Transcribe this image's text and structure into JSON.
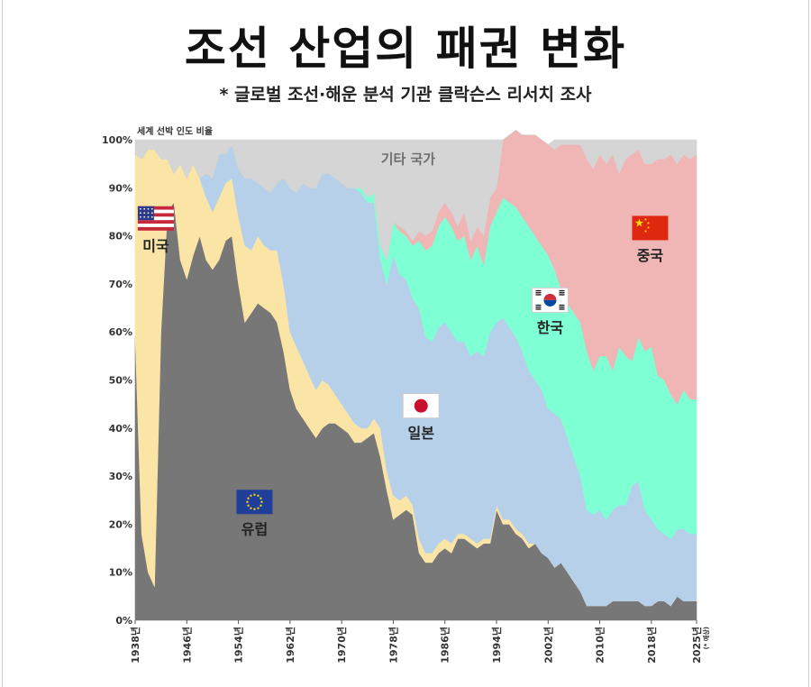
{
  "header": {
    "title": "조선 산업의 패권 변화",
    "subtitle": "* 글로벌 조선·해운 분석 기관 클락슨스 리서치 조사"
  },
  "chart_data": {
    "type": "area",
    "stacked": true,
    "ylabel": "세계 선박 인도 비율",
    "ylim": [
      0,
      100
    ],
    "yticks": [
      "0%",
      "10%",
      "20%",
      "30%",
      "40%",
      "50%",
      "60%",
      "70%",
      "80%",
      "90%",
      "100%"
    ],
    "xlim": [
      1938,
      2025
    ],
    "xticks": [
      {
        "year": 1938,
        "label": "1938년"
      },
      {
        "year": 1946,
        "label": "1946년"
      },
      {
        "year": 1954,
        "label": "1954년"
      },
      {
        "year": 1962,
        "label": "1962년"
      },
      {
        "year": 1970,
        "label": "1970년"
      },
      {
        "year": 1978,
        "label": "1978년"
      },
      {
        "year": 1986,
        "label": "1986년"
      },
      {
        "year": 1994,
        "label": "1994년"
      },
      {
        "year": 2002,
        "label": "2002년"
      },
      {
        "year": 2010,
        "label": "2010년"
      },
      {
        "year": 2018,
        "label": "2018년"
      },
      {
        "year": 2025,
        "label": "2025년",
        "note": "(* 예상)"
      }
    ],
    "x": [
      1938,
      1939,
      1940,
      1941,
      1942,
      1943,
      1944,
      1945,
      1946,
      1947,
      1948,
      1949,
      1950,
      1951,
      1952,
      1953,
      1954,
      1955,
      1956,
      1957,
      1958,
      1959,
      1960,
      1961,
      1962,
      1963,
      1964,
      1965,
      1966,
      1967,
      1968,
      1969,
      1970,
      1971,
      1972,
      1973,
      1974,
      1975,
      1976,
      1977,
      1978,
      1979,
      1980,
      1981,
      1982,
      1983,
      1984,
      1985,
      1986,
      1987,
      1988,
      1989,
      1990,
      1991,
      1992,
      1993,
      1994,
      1995,
      1996,
      1997,
      1998,
      1999,
      2000,
      2001,
      2002,
      2003,
      2004,
      2005,
      2006,
      2007,
      2008,
      2009,
      2010,
      2011,
      2012,
      2013,
      2014,
      2015,
      2016,
      2017,
      2018,
      2019,
      2020,
      2021,
      2022,
      2023,
      2024,
      2025
    ],
    "series": [
      {
        "name": "유럽",
        "color": "#777777",
        "values": [
          59,
          18,
          10,
          7,
          60,
          85,
          87,
          75,
          71,
          76,
          80,
          75,
          73,
          75,
          79,
          80,
          70,
          62,
          64,
          66,
          65,
          64,
          62,
          56,
          48,
          44,
          42,
          40,
          38,
          40,
          41,
          41,
          40,
          39,
          37,
          37,
          38,
          39,
          34,
          27,
          21,
          22,
          23,
          22,
          14,
          12,
          12,
          14,
          15,
          14,
          17,
          17,
          16,
          15,
          16,
          16,
          23,
          20,
          20,
          18,
          17,
          15,
          16,
          14,
          13,
          11,
          12,
          10,
          8,
          6,
          3,
          3,
          3,
          3,
          4,
          4,
          4,
          4,
          4,
          3,
          3,
          4,
          4,
          3,
          5,
          4,
          4,
          4
        ]
      },
      {
        "name": "미국",
        "color": "#fbe5a6",
        "values": [
          38,
          78,
          88,
          91,
          36,
          11,
          6,
          20,
          21,
          19,
          12,
          13,
          12,
          13,
          12,
          12,
          14,
          16,
          13,
          14,
          13,
          13,
          15,
          14,
          12,
          13,
          12,
          11,
          10,
          10,
          8,
          6,
          5,
          4,
          4,
          3,
          2,
          3,
          6,
          4,
          5,
          3,
          3,
          2,
          3,
          2,
          2,
          2,
          2,
          2,
          1,
          1,
          1,
          1,
          1,
          1,
          1,
          1,
          1,
          1,
          1,
          1,
          0,
          0,
          0,
          0,
          0,
          0,
          0,
          0,
          0,
          0,
          0,
          0,
          0,
          0,
          0,
          0,
          0,
          0,
          0,
          0,
          0,
          0,
          0,
          0,
          0,
          0
        ]
      },
      {
        "name": "일본",
        "color": "#b7d0ea",
        "values": [
          0,
          0,
          0,
          0,
          0,
          0,
          0,
          0,
          0,
          0,
          0,
          5,
          7,
          9,
          6,
          7,
          10,
          14,
          15,
          11,
          12,
          12,
          14,
          22,
          30,
          32,
          37,
          39,
          42,
          43,
          44,
          45,
          46,
          47,
          49,
          49,
          47,
          45,
          35,
          39,
          50,
          47,
          45,
          43,
          48,
          45,
          44,
          45,
          45,
          44,
          40,
          40,
          38,
          40,
          38,
          43,
          38,
          42,
          40,
          40,
          38,
          36,
          34,
          34,
          31,
          32,
          30,
          28,
          26,
          24,
          20,
          19,
          20,
          18,
          19,
          20,
          20,
          24,
          25,
          20,
          18,
          15,
          14,
          14,
          14,
          15,
          14,
          14
        ]
      },
      {
        "name": "한국",
        "color": "#7effd4",
        "values": [
          0,
          0,
          0,
          0,
          0,
          0,
          0,
          0,
          0,
          0,
          0,
          0,
          0,
          0,
          0,
          0,
          0,
          0,
          0,
          0,
          0,
          0,
          0,
          0,
          0,
          0,
          0,
          0,
          0,
          0,
          0,
          0,
          0,
          0,
          0,
          1,
          1,
          2,
          3,
          5,
          7,
          9,
          9,
          11,
          14,
          18,
          20,
          21,
          22,
          22,
          21,
          22,
          20,
          22,
          19,
          22,
          23,
          25,
          26,
          27,
          28,
          30,
          30,
          30,
          32,
          30,
          27,
          28,
          30,
          32,
          33,
          30,
          32,
          34,
          29,
          33,
          31,
          26,
          30,
          33,
          36,
          32,
          32,
          30,
          26,
          29,
          28,
          28
        ]
      },
      {
        "name": "중국",
        "color": "#f0b6b6",
        "values": [
          0,
          0,
          0,
          0,
          0,
          0,
          0,
          0,
          0,
          0,
          0,
          0,
          0,
          0,
          0,
          0,
          0,
          0,
          0,
          0,
          0,
          0,
          0,
          0,
          0,
          0,
          0,
          0,
          0,
          0,
          0,
          0,
          0,
          0,
          0,
          0,
          0,
          0,
          0,
          0,
          0,
          1,
          1,
          1,
          2,
          3,
          3,
          3,
          3,
          3,
          3,
          5,
          4,
          4,
          6,
          6,
          5,
          12,
          14,
          16,
          17,
          19,
          21,
          22,
          23,
          25,
          30,
          33,
          35,
          37,
          40,
          42,
          42,
          40,
          45,
          36,
          41,
          43,
          39,
          39,
          38,
          45,
          46,
          50,
          50,
          49,
          50,
          51
        ]
      },
      {
        "name": "기타 국가",
        "color": "#d5d5d5",
        "values": [
          3,
          4,
          2,
          2,
          4,
          4,
          7,
          5,
          8,
          5,
          8,
          7,
          8,
          3,
          3,
          1,
          6,
          8,
          8,
          9,
          10,
          11,
          9,
          8,
          10,
          11,
          9,
          10,
          10,
          7,
          7,
          8,
          9,
          10,
          10,
          10,
          12,
          11,
          22,
          25,
          17,
          18,
          19,
          21,
          19,
          20,
          19,
          15,
          13,
          15,
          18,
          15,
          21,
          18,
          20,
          12,
          10,
          0,
          0,
          0,
          0,
          0,
          0,
          0,
          0,
          2,
          1,
          1,
          1,
          1,
          4,
          6,
          3,
          5,
          3,
          7,
          4,
          3,
          2,
          5,
          5,
          4,
          4,
          3,
          5,
          3,
          4,
          3
        ]
      }
    ],
    "annotations": [
      {
        "text": "미국",
        "flag": "us",
        "x": 1941.2,
        "y": 81
      },
      {
        "text": "유럽",
        "flag": "eu",
        "x": 1956.5,
        "y": 22
      },
      {
        "text": "일본",
        "flag": "jp",
        "x": 1982.3,
        "y": 42
      },
      {
        "text": "한국",
        "flag": "kr",
        "x": 2002.3,
        "y": 64
      },
      {
        "text": "중국",
        "flag": "cn",
        "x": 2017.8,
        "y": 79
      },
      {
        "text": "기타 국가",
        "flag": "",
        "x": 1980.3,
        "y": 95
      }
    ],
    "colors": {
      "other_top_accent": "#fbe5a6"
    }
  }
}
